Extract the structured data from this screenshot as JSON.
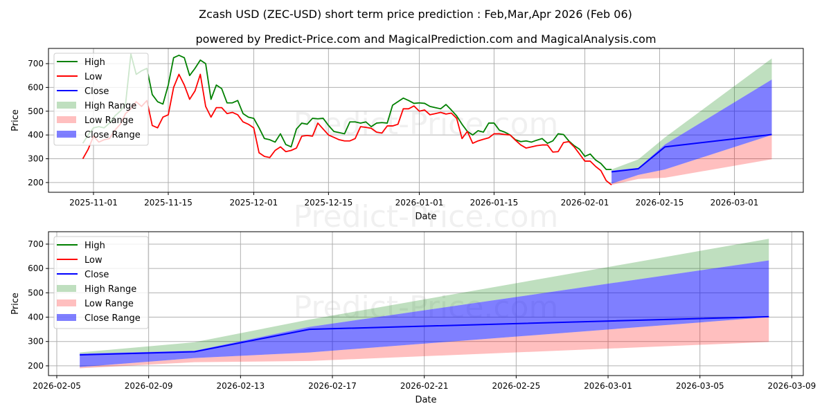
{
  "title": "Zcash USD (ZEC-USD) short term price prediction : Feb,Mar,Apr 2026 (Feb 06)",
  "subtitle": "powered by Predict-Price.com and MagicalPrediction.com and MagicalAnalysis.com",
  "watermark": "Predict-Price.com",
  "colors": {
    "high": "#008000",
    "low": "#ff0000",
    "close": "#0000ff",
    "high_range": "#008000",
    "low_range": "#ff0000",
    "close_range": "#0000ff"
  },
  "legend": [
    "High",
    "Low",
    "Close",
    "High Range",
    "Low Range",
    "Close Range"
  ],
  "chart_data": [
    {
      "type": "line",
      "panel": "history-and-forecast",
      "xlabel": "Date",
      "ylabel": "Price",
      "xlim": [
        "2025-10-23T13:40",
        "2026-03-13T21:36"
      ],
      "ylim": [
        159,
        764
      ],
      "xticks": [
        "2025-11-01",
        "2025-11-15",
        "2025-12-01",
        "2025-12-15",
        "2026-01-01",
        "2026-01-15",
        "2026-02-01",
        "2026-02-15",
        "2026-03-01"
      ],
      "yticks": [
        200,
        300,
        400,
        500,
        600,
        700
      ],
      "grid": true,
      "legend_position": "top-left",
      "history_start": "2025-10-30",
      "high": [
        365,
        400,
        430,
        435,
        430,
        450,
        480,
        500,
        530,
        740,
        655,
        670,
        680,
        570,
        540,
        530,
        610,
        725,
        735,
        725,
        650,
        680,
        715,
        700,
        550,
        610,
        595,
        535,
        535,
        545,
        490,
        475,
        470,
        430,
        385,
        380,
        370,
        405,
        360,
        350,
        425,
        450,
        445,
        470,
        468,
        470,
        440,
        415,
        410,
        405,
        455,
        455,
        450,
        455,
        435,
        450,
        452,
        450,
        525,
        540,
        555,
        545,
        533,
        535,
        533,
        520,
        515,
        510,
        528,
        505,
        480,
        445,
        415,
        400,
        418,
        412,
        450,
        450,
        420,
        412,
        400,
        380,
        372,
        375,
        370,
        378,
        385,
        365,
        375,
        405,
        402,
        375,
        355,
        340,
        310,
        320,
        295,
        280,
        255,
        255
      ],
      "low": [
        300,
        340,
        395,
        370,
        380,
        385,
        420,
        445,
        490,
        510,
        540,
        520,
        545,
        440,
        430,
        475,
        485,
        600,
        655,
        610,
        550,
        585,
        655,
        520,
        475,
        515,
        515,
        490,
        495,
        485,
        455,
        445,
        430,
        325,
        310,
        305,
        335,
        350,
        330,
        335,
        345,
        395,
        398,
        395,
        450,
        425,
        400,
        390,
        380,
        375,
        375,
        385,
        435,
        432,
        428,
        412,
        408,
        438,
        438,
        445,
        510,
        510,
        522,
        500,
        505,
        485,
        490,
        495,
        488,
        492,
        470,
        385,
        415,
        365,
        375,
        382,
        388,
        405,
        405,
        402,
        400,
        378,
        358,
        345,
        350,
        355,
        358,
        358,
        328,
        330,
        368,
        372,
        350,
        320,
        290,
        290,
        268,
        250,
        208,
        190
      ]
    },
    {
      "type": "area",
      "panel": "forecast",
      "xlabel": "Date",
      "ylabel": "Price",
      "xlim": [
        "2026-02-04T15:20",
        "2026-03-09T12:00"
      ],
      "ylim": [
        160,
        751
      ],
      "xticks": [
        "2026-02-05",
        "2026-02-09",
        "2026-02-13",
        "2026-02-17",
        "2026-02-21",
        "2026-02-25",
        "2026-03-01",
        "2026-03-05",
        "2026-03-09"
      ],
      "yticks": [
        200,
        300,
        400,
        500,
        600,
        700
      ],
      "grid": true,
      "legend_position": "top-left",
      "forecast_dates": [
        "2026-02-06",
        "2026-02-11",
        "2026-02-16",
        "2026-03-08"
      ],
      "close": [
        245,
        258,
        350,
        402
      ],
      "close_range": {
        "upper": [
          250,
          262,
          360,
          633
        ],
        "lower": [
          195,
          232,
          255,
          400
        ]
      },
      "high_range": {
        "upper": [
          255,
          297,
          390,
          722
        ],
        "lower": [
          250,
          262,
          360,
          633
        ]
      },
      "low_range": {
        "upper": [
          195,
          232,
          255,
          400
        ],
        "lower": [
          190,
          215,
          220,
          298
        ]
      }
    }
  ]
}
